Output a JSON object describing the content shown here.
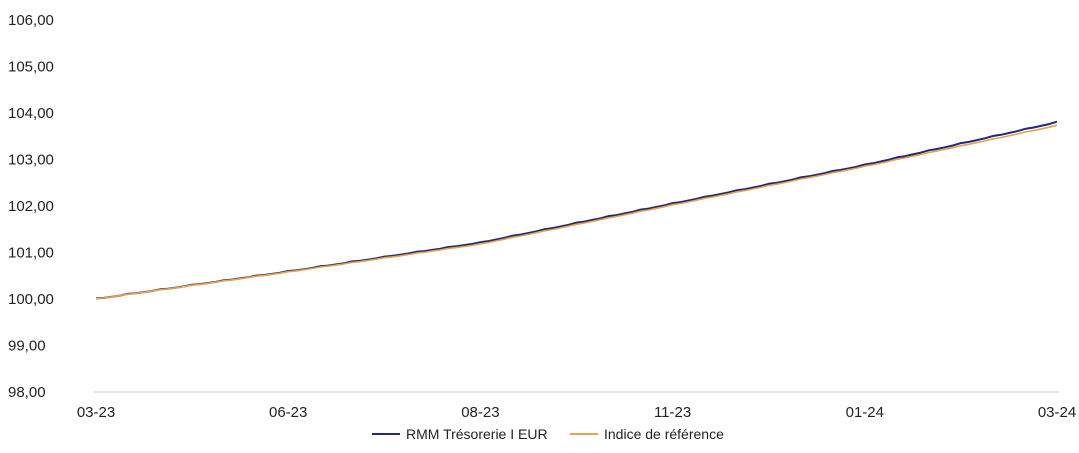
{
  "chart_data": {
    "type": "line",
    "x": [
      "03-23",
      "06-23",
      "08-23",
      "11-23",
      "01-24",
      "03-24"
    ],
    "xlim": [
      "03-23",
      "03-24"
    ],
    "ylim": [
      98,
      106
    ],
    "y_ticks": [
      "98,00",
      "99,00",
      "100,00",
      "101,00",
      "102,00",
      "103,00",
      "104,00",
      "105,00",
      "106,00"
    ],
    "grid": false,
    "legend_position": "bottom-center",
    "series": [
      {
        "name": "RMM Trésorerie I EUR",
        "color": "#1f2a7a",
        "values": [
          100.0,
          100.59,
          101.21,
          102.05,
          102.88,
          103.8
        ]
      },
      {
        "name": "Indice de référence",
        "color": "#e8a24a",
        "values": [
          100.0,
          100.58,
          101.18,
          102.02,
          102.85,
          103.73
        ]
      }
    ]
  }
}
